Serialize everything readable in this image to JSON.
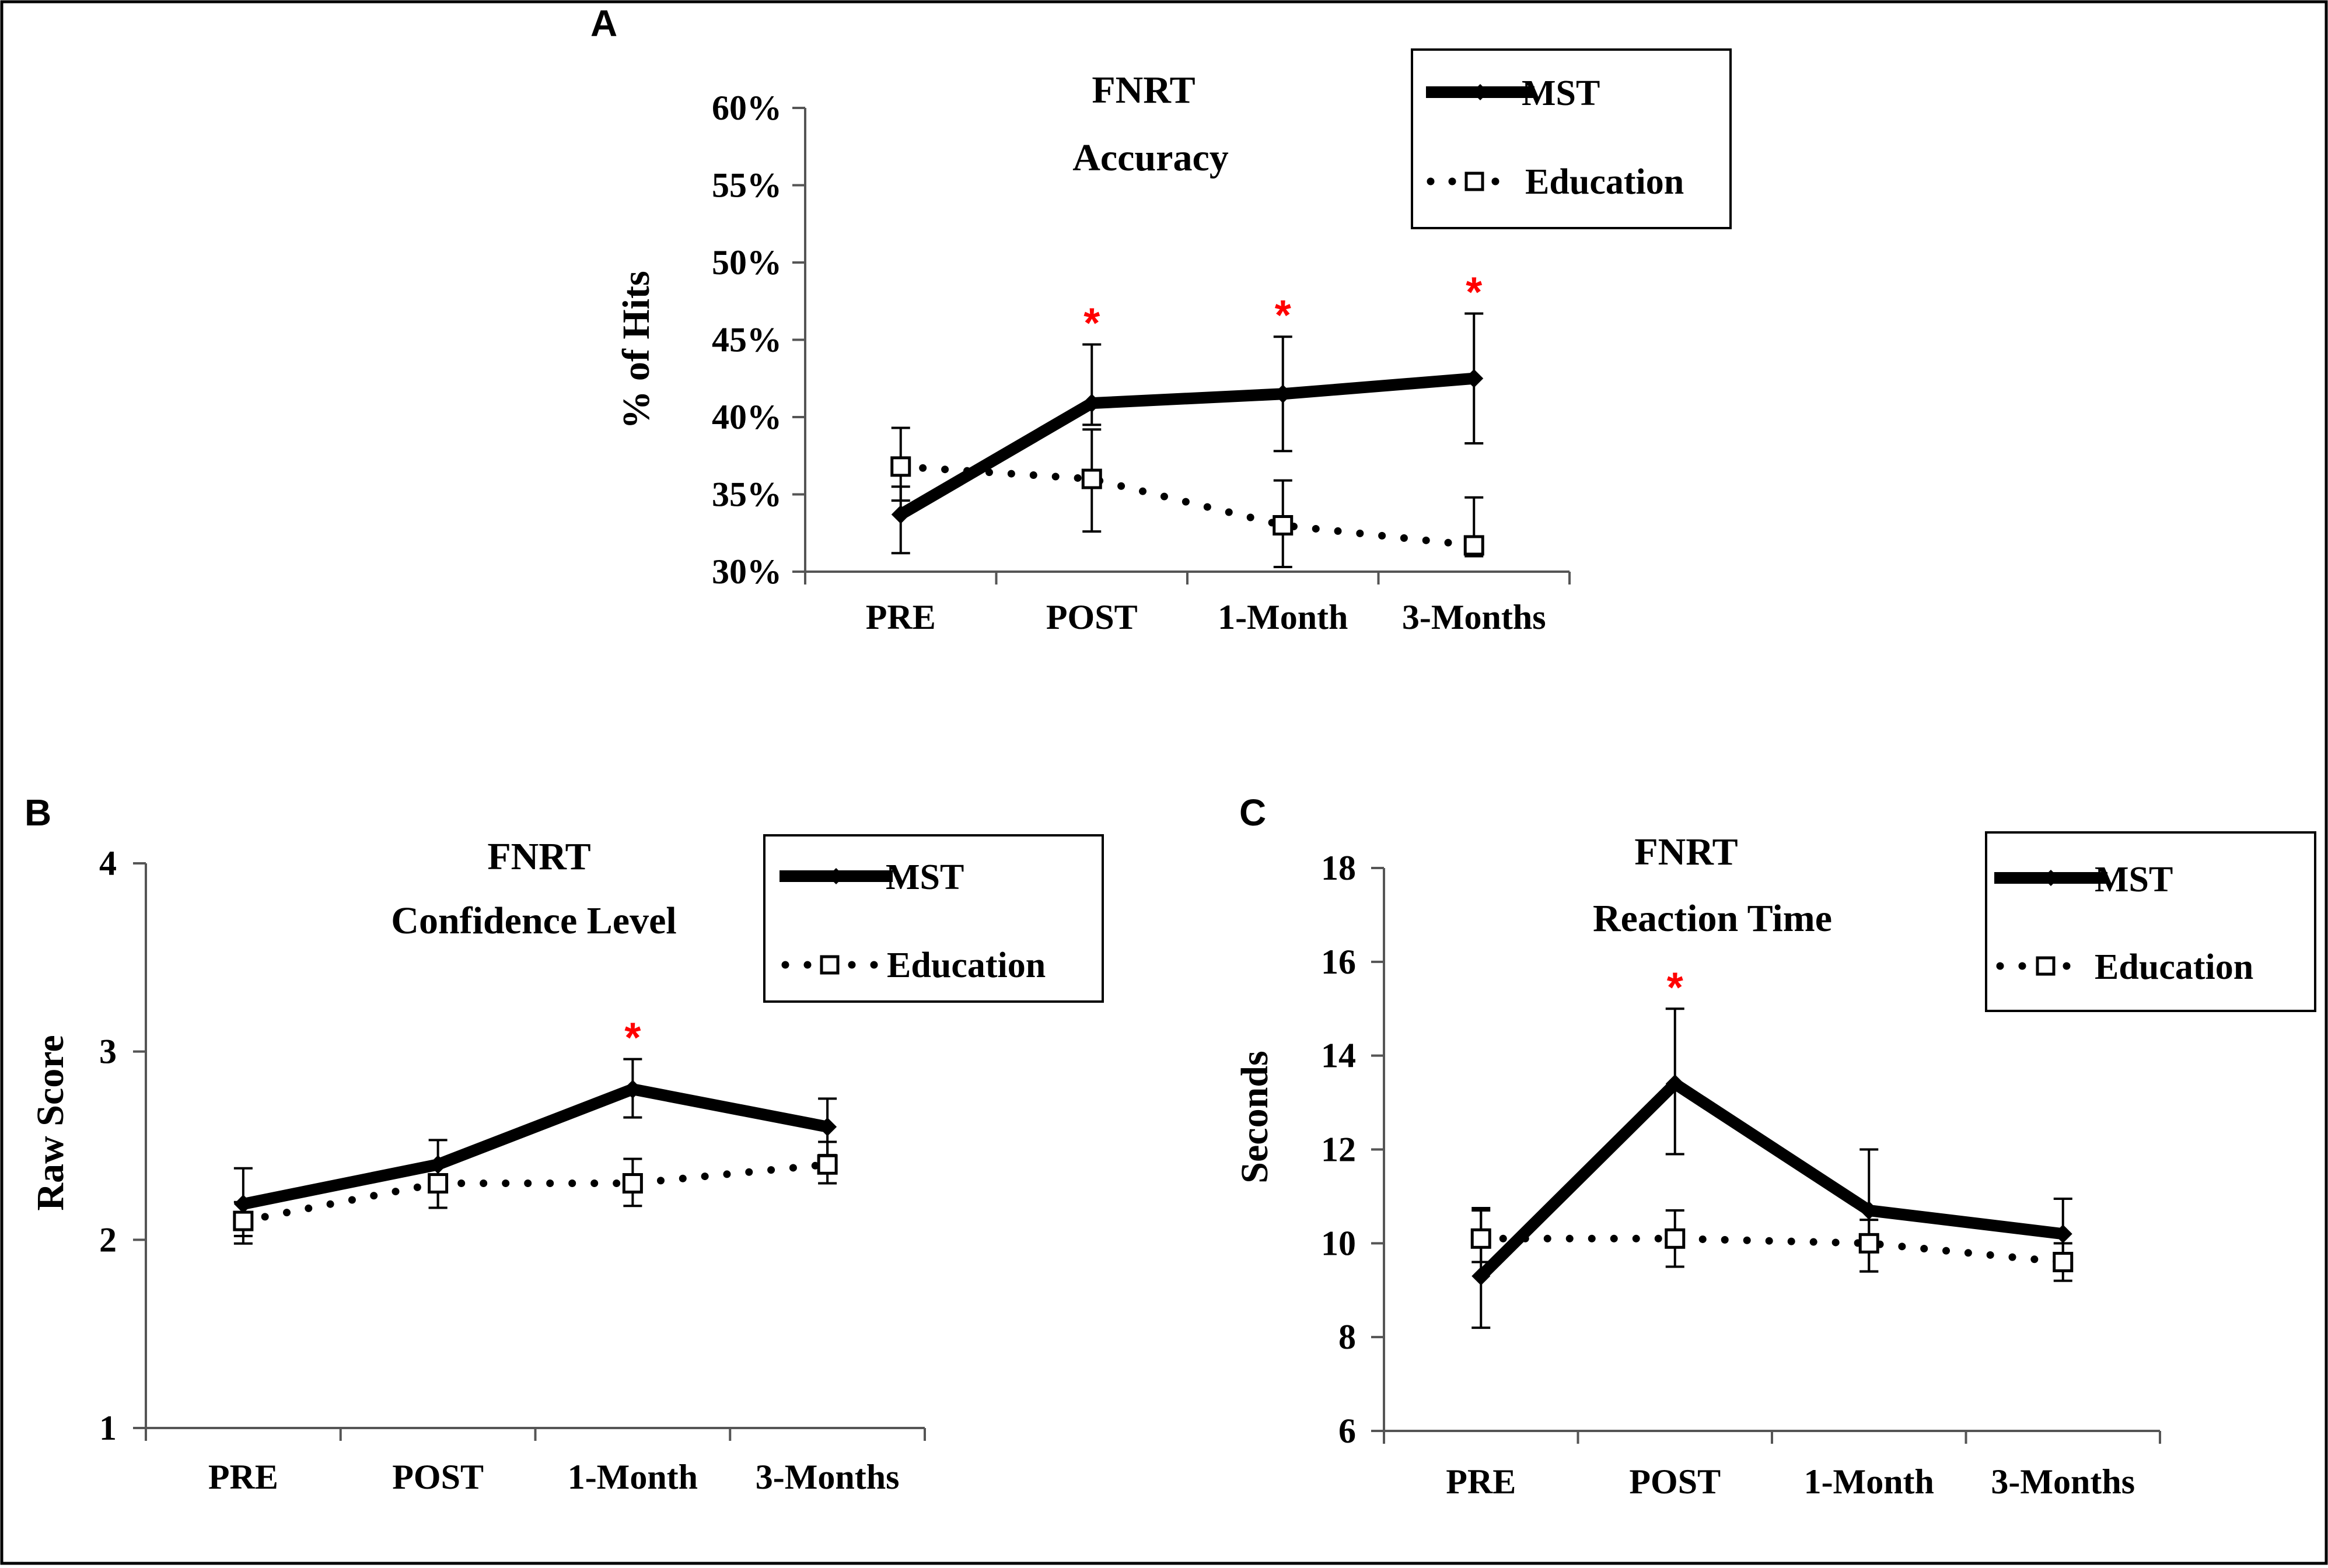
{
  "figure": {
    "border_color": "#000000"
  },
  "chart_data": [
    {
      "id": "A",
      "panel_label": "A",
      "type": "line",
      "title": [
        "FNRT",
        "Accuracy"
      ],
      "xlabel": "",
      "ylabel": "% of Hits",
      "categories": [
        "PRE",
        "POST",
        "1-Month",
        "3-Months"
      ],
      "ylim": [
        30,
        60
      ],
      "yticks": [
        30,
        35,
        40,
        45,
        50,
        55,
        60
      ],
      "ytick_labels": [
        "30%",
        "35%",
        "40%",
        "45%",
        "50%",
        "55%",
        "60%"
      ],
      "legend": {
        "placement": "top-right",
        "entries": [
          "MST",
          "Education"
        ]
      },
      "series": [
        {
          "name": "MST",
          "style": "solid-diamond",
          "color": "#000000",
          "values": [
            33.7,
            40.9,
            41.5,
            42.5
          ],
          "error_upper": [
            35.5,
            44.7,
            45.2,
            46.7
          ],
          "error_lower": [
            31.2,
            39.5,
            37.8,
            38.3
          ]
        },
        {
          "name": "Education",
          "style": "dotted-square",
          "color": "#000000",
          "values": [
            36.8,
            36.0,
            33.0,
            31.7
          ],
          "error_upper": [
            39.3,
            39.2,
            35.9,
            34.8
          ],
          "error_lower": [
            34.6,
            32.6,
            30.3,
            31.0
          ]
        }
      ],
      "significance": [
        {
          "category": "POST",
          "label": "*",
          "color": "#ff0000"
        },
        {
          "category": "1-Month",
          "label": "*",
          "color": "#ff0000"
        },
        {
          "category": "3-Months",
          "label": "*",
          "color": "#ff0000"
        }
      ]
    },
    {
      "id": "B",
      "panel_label": "B",
      "type": "line",
      "title": [
        "FNRT",
        "Confidence Level"
      ],
      "xlabel": "",
      "ylabel": "Raw Score",
      "categories": [
        "PRE",
        "POST",
        "1-Month",
        "3-Months"
      ],
      "ylim": [
        1,
        4
      ],
      "yticks": [
        1,
        2,
        3,
        4
      ],
      "ytick_labels": [
        "1",
        "2",
        "3",
        "4"
      ],
      "legend": {
        "placement": "top-right",
        "entries": [
          "MST",
          "Education"
        ]
      },
      "series": [
        {
          "name": "MST",
          "style": "solid-diamond",
          "color": "#000000",
          "values": [
            2.19,
            2.4,
            2.8,
            2.6
          ],
          "error_upper": [
            2.38,
            2.53,
            2.96,
            2.75
          ],
          "error_lower": [
            2.02,
            2.17,
            2.65,
            2.45
          ]
        },
        {
          "name": "Education",
          "style": "dotted-square",
          "color": "#000000",
          "values": [
            2.1,
            2.3,
            2.3,
            2.4
          ],
          "error_upper": [
            2.2,
            2.41,
            2.43,
            2.52
          ],
          "error_lower": [
            1.98,
            2.17,
            2.18,
            2.3
          ]
        }
      ],
      "significance": [
        {
          "category": "1-Month",
          "label": "*",
          "color": "#ff0000"
        }
      ]
    },
    {
      "id": "C",
      "panel_label": "C",
      "type": "line",
      "title": [
        "FNRT",
        "Reaction Time"
      ],
      "xlabel": "",
      "ylabel": "Seconds",
      "categories": [
        "PRE",
        "POST",
        "1-Month",
        "3-Months"
      ],
      "ylim": [
        6,
        18
      ],
      "yticks": [
        6,
        8,
        10,
        12,
        14,
        16,
        18
      ],
      "ytick_labels": [
        "6",
        "8",
        "10",
        "12",
        "14",
        "16",
        "18"
      ],
      "legend": {
        "placement": "top-right",
        "entries": [
          "MST",
          "Education"
        ]
      },
      "series": [
        {
          "name": "MST",
          "style": "solid-diamond",
          "color": "#000000",
          "values": [
            9.3,
            13.4,
            10.7,
            10.2
          ],
          "error_upper": [
            10.7,
            15.0,
            12.0,
            10.95
          ],
          "error_lower": [
            8.2,
            11.9,
            9.4,
            9.5
          ]
        },
        {
          "name": "Education",
          "style": "dotted-square",
          "color": "#000000",
          "values": [
            10.1,
            10.1,
            10.0,
            9.6
          ],
          "error_upper": [
            10.75,
            10.7,
            10.5,
            10.0
          ],
          "error_lower": [
            9.6,
            9.5,
            9.4,
            9.2
          ]
        }
      ],
      "significance": [
        {
          "category": "POST",
          "label": "*",
          "color": "#ff0000"
        }
      ]
    }
  ]
}
